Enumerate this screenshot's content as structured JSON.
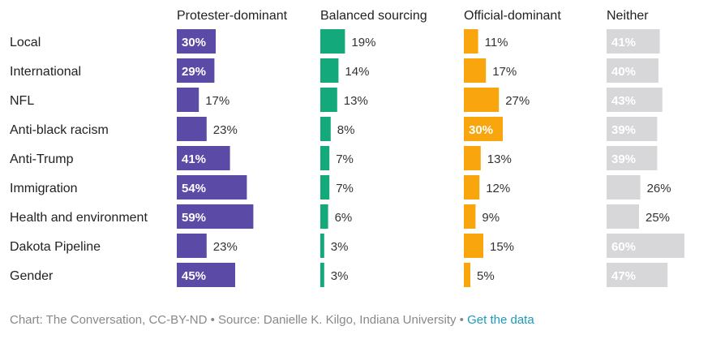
{
  "chart_data": {
    "type": "bar",
    "orientation": "horizontal",
    "layout": "small-multiples",
    "categories": [
      "Local",
      "International",
      "NFL",
      "Anti-black racism",
      "Anti-Trump",
      "Immigration",
      "Health and environment",
      "Dakota Pipeline",
      "Gender"
    ],
    "series": [
      {
        "name": "Protester-dominant",
        "color": "#5b4ba7",
        "values": [
          30,
          29,
          17,
          23,
          41,
          54,
          59,
          23,
          45
        ]
      },
      {
        "name": "Balanced sourcing",
        "color": "#13a97a",
        "values": [
          19,
          14,
          13,
          8,
          7,
          7,
          6,
          3,
          3
        ]
      },
      {
        "name": "Official-dominant",
        "color": "#f9a60e",
        "values": [
          11,
          17,
          27,
          30,
          13,
          12,
          9,
          15,
          5
        ]
      },
      {
        "name": "Neither",
        "color": "#d7d7d9",
        "values": [
          41,
          40,
          43,
          39,
          39,
          26,
          25,
          60,
          47
        ]
      }
    ],
    "value_suffix": "%"
  },
  "footer": {
    "credit": "Chart: The Conversation, CC-BY-ND",
    "separator": " • ",
    "source": "Source: Danielle K. Kilgo, Indiana University",
    "link": "Get the data"
  }
}
